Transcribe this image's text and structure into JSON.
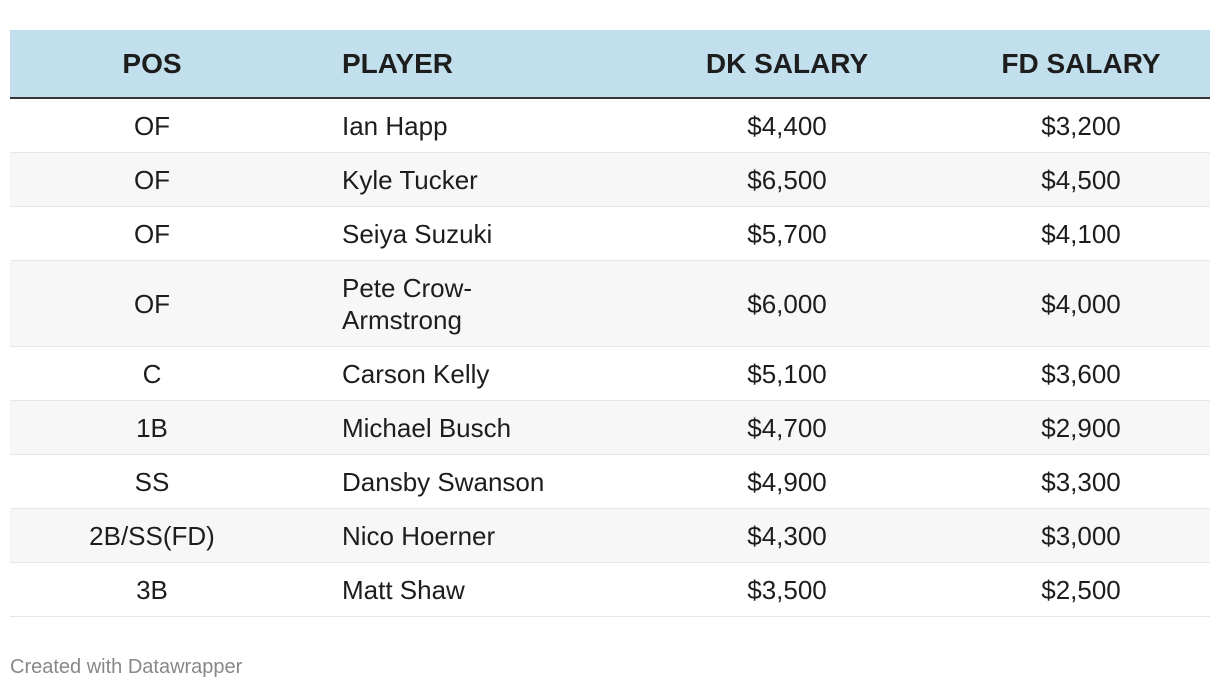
{
  "table": {
    "headers": [
      "POS",
      "PLAYER",
      "DK SALARY",
      "FD SALARY"
    ],
    "rows": [
      [
        "OF",
        "Ian Happ",
        "$4,400",
        "$3,200"
      ],
      [
        "OF",
        "Kyle Tucker",
        "$6,500",
        "$4,500"
      ],
      [
        "OF",
        "Seiya Suzuki",
        "$5,700",
        "$4,100"
      ],
      [
        "OF",
        "Pete Crow-Armstrong",
        "$6,000",
        "$4,000"
      ],
      [
        "C",
        "Carson Kelly",
        "$5,100",
        "$3,600"
      ],
      [
        "1B",
        "Michael Busch",
        "$4,700",
        "$2,900"
      ],
      [
        "SS",
        "Dansby Swanson",
        "$4,900",
        "$3,300"
      ],
      [
        "2B/SS(FD)",
        "Nico Hoerner",
        "$4,300",
        "$3,000"
      ],
      [
        "3B",
        "Matt Shaw",
        "$3,500",
        "$2,500"
      ]
    ]
  },
  "colors": {
    "header_bg": "#c2dfed",
    "alt_row_bg": "#f7f7f7"
  },
  "footer": "Created with Datawrapper"
}
